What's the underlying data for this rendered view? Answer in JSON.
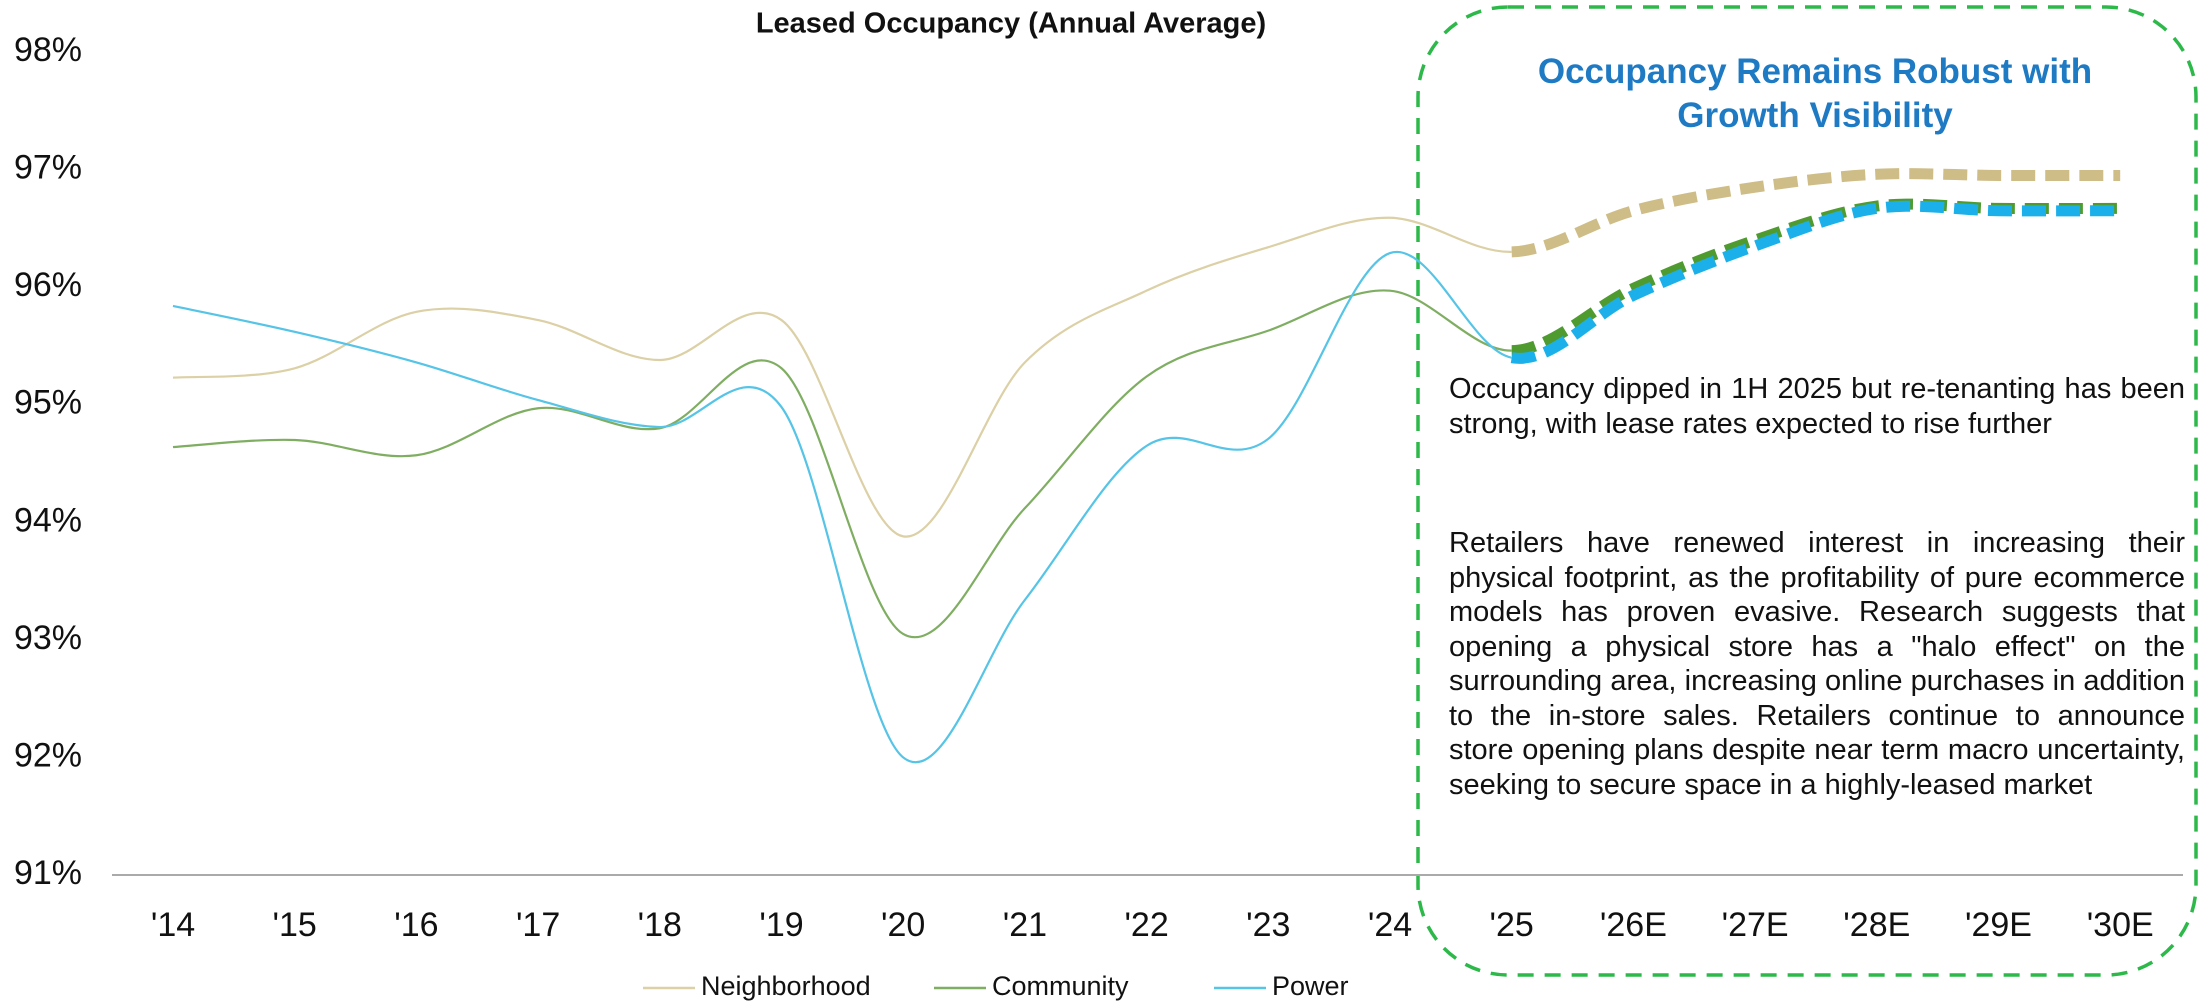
{
  "chart_data": {
    "type": "line",
    "title": "Leased Occupancy (Annual Average)",
    "categories": [
      "'14",
      "'15",
      "'16",
      "'17",
      "'18",
      "'19",
      "'20",
      "'21",
      "'22",
      "'23",
      "'24",
      "'25",
      "'26E",
      "'27E",
      "'28E",
      "'29E",
      "'30E"
    ],
    "forecast_start": "'25",
    "series": [
      {
        "name": "Neighborhood",
        "color": "#dcd0a6",
        "forecast_color": "#cfbd88",
        "values": [
          95.23,
          95.31,
          95.79,
          95.72,
          95.38,
          95.72,
          93.88,
          95.36,
          95.97,
          96.34,
          96.59,
          96.3,
          96.65,
          96.85,
          96.96,
          96.95,
          96.95
        ]
      },
      {
        "name": "Community",
        "color": "#7fae62",
        "forecast_color": "#4f9b30",
        "values": [
          94.64,
          94.7,
          94.57,
          94.97,
          94.8,
          95.31,
          93.05,
          94.12,
          95.24,
          95.63,
          95.97,
          95.46,
          95.99,
          96.4,
          96.69,
          96.67,
          96.67
        ]
      },
      {
        "name": "Power",
        "color": "#55c4e6",
        "forecast_color": "#1cb0ea",
        "values": [
          95.84,
          95.62,
          95.36,
          95.04,
          94.81,
          94.98,
          92.0,
          93.34,
          94.65,
          94.71,
          96.29,
          95.4,
          95.93,
          96.35,
          96.67,
          96.65,
          96.65
        ]
      }
    ],
    "ylim": [
      91,
      98
    ],
    "yticks": [
      {
        "value": 91,
        "label": "91%"
      },
      {
        "value": 92,
        "label": "92%"
      },
      {
        "value": 93,
        "label": "93%"
      },
      {
        "value": 94,
        "label": "94%"
      },
      {
        "value": 95,
        "label": "95%"
      },
      {
        "value": 96,
        "label": "96%"
      },
      {
        "value": 97,
        "label": "97%"
      },
      {
        "value": 98,
        "label": "98%"
      }
    ],
    "grid": false,
    "legend": "bottom",
    "annotation": {
      "title": "Occupancy Remains Robust with Growth Visibility",
      "paragraphs": [
        "Occupancy dipped in 1H 2025 but re-tenanting has been strong, with lease rates expected to rise further",
        "Retailers have renewed interest in increasing their physical footprint, as the profitability of pure ecommerce models has proven evasive.  Research suggests that opening a physical store has a \"halo effect\" on the surrounding area, increasing online purchases in addition to the in-store sales. Retailers continue to announce store opening plans despite near term macro uncertainty, seeking to secure space in a highly-leased market"
      ]
    }
  }
}
